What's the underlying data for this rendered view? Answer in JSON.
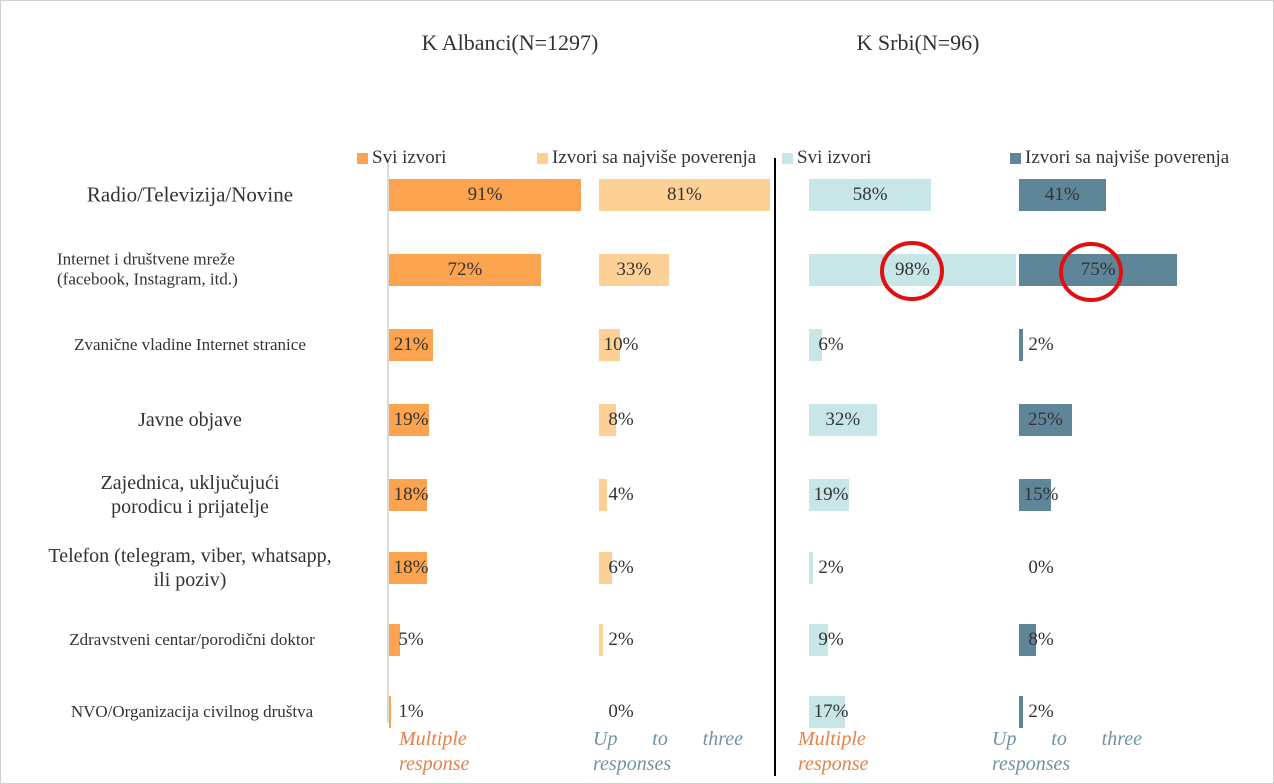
{
  "chart_data": {
    "type": "bar",
    "categories": [
      "Radio/Televizija/Novine",
      "Internet i društvene mreže (facebook, Instagram, itd.)",
      "Zvanične vladine Internet stranice",
      "Javne objave",
      "Zajednica, uključujući porodicu i prijatelje",
      "Telefon (telegram, viber, whatsapp, ili poziv)",
      "Zdravstveni centar/porodični doktor",
      "NVO/Organizacija civilnog društva"
    ],
    "xlim": [
      0,
      100
    ],
    "groups": [
      {
        "title": "K Albanci(N=1297)",
        "series": [
          {
            "name": "Svi izvori",
            "color": "#fba34f",
            "note": "Multiple response",
            "values": [
              91,
              72,
              21,
              19,
              18,
              18,
              5,
              1
            ],
            "value_labels": [
              "91%",
              "72%",
              "21%",
              "19%",
              "18%",
              "18%",
              "5%",
              "1%"
            ]
          },
          {
            "name": "Izvori sa najviše poverenja",
            "color": "#fdd095",
            "note": "Up to three responses",
            "values": [
              81,
              33,
              10,
              8,
              4,
              6,
              2,
              0
            ],
            "value_labels": [
              "81%",
              "33%",
              "10%",
              "8%",
              "4%",
              "6%",
              "2%",
              "0%"
            ]
          }
        ]
      },
      {
        "title": "K Srbi(N=96)",
        "series": [
          {
            "name": "Svi izvori",
            "color": "#c7e6e8",
            "note": "Multiple response",
            "values": [
              58,
              98,
              6,
              32,
              19,
              2,
              9,
              17
            ],
            "value_labels": [
              "58%",
              "98%",
              "6%",
              "32%",
              "19%",
              "2%",
              "9%",
              "17%"
            ]
          },
          {
            "name": "Izvori sa najviše poverenja",
            "color": "#5f8698",
            "note": "Up to three responses",
            "values": [
              41,
              75,
              2,
              25,
              15,
              0,
              8,
              2
            ],
            "value_labels": [
              "41%",
              "75%",
              "2%",
              "25%",
              "15%",
              "0%",
              "8%",
              "2%"
            ]
          }
        ]
      }
    ]
  }
}
